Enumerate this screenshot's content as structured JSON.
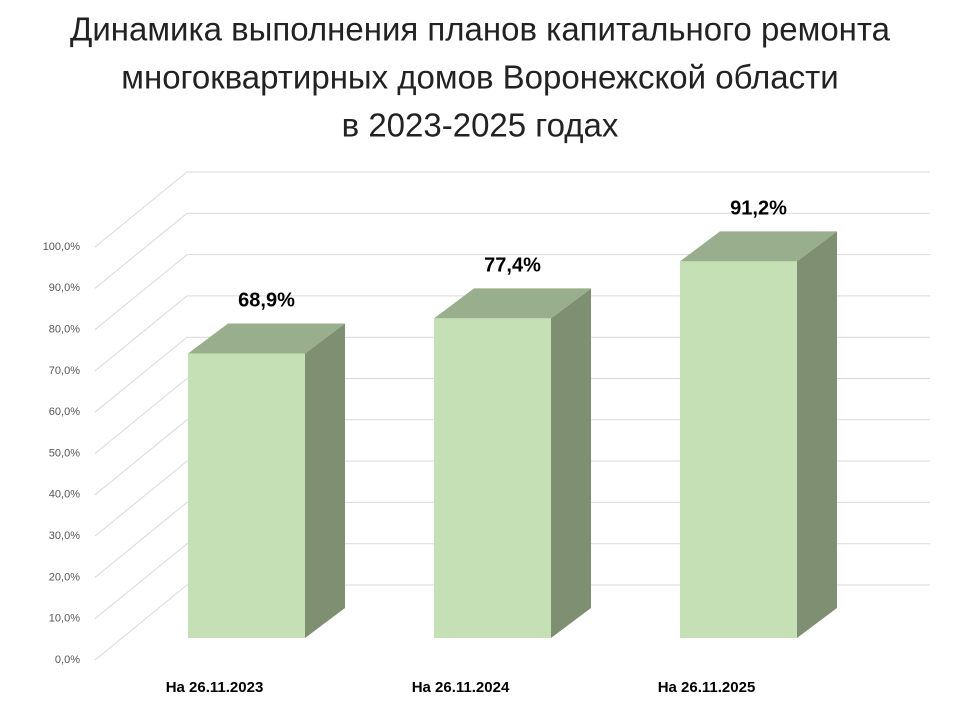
{
  "chart_data": {
    "type": "bar3d",
    "title": [
      "Динамика выполнения планов капитального ремонта",
      "многоквартирных домов Воронежской области",
      "в 2023-2025 годах"
    ],
    "categories": [
      "На 26.11.2023",
      "На 26.11.2024",
      "На 26.11.2025"
    ],
    "values": [
      68.9,
      77.4,
      91.2
    ],
    "value_labels": [
      "68,9%",
      "77,4%",
      "91,2%"
    ],
    "color": "#c5e0b4",
    "ylim": [
      0,
      100
    ],
    "yticks": [
      {
        "value": 0,
        "label": "0,0%"
      },
      {
        "value": 10,
        "label": "10,0%"
      },
      {
        "value": 20,
        "label": "20,0%"
      },
      {
        "value": 30,
        "label": "30,0%"
      },
      {
        "value": 40,
        "label": "40,0%"
      },
      {
        "value": 50,
        "label": "50,0%"
      },
      {
        "value": 60,
        "label": "60,0%"
      },
      {
        "value": 70,
        "label": "70,0%"
      },
      {
        "value": 80,
        "label": "80,0%"
      },
      {
        "value": 90,
        "label": "90,0%"
      },
      {
        "value": 100,
        "label": "100,0%"
      }
    ],
    "grid": true
  }
}
